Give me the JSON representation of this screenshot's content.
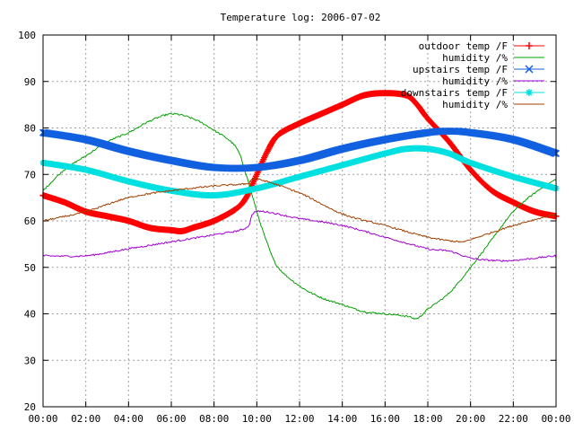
{
  "chart_data": {
    "type": "line",
    "title": "Temperature log: 2006-07-02",
    "xlabel": "",
    "ylabel": "",
    "xlim": [
      0,
      24
    ],
    "ylim": [
      20,
      100
    ],
    "grid": true,
    "legend_position": "top-right",
    "x_ticks": [
      "00:00",
      "02:00",
      "04:00",
      "06:00",
      "08:00",
      "10:00",
      "12:00",
      "14:00",
      "16:00",
      "18:00",
      "20:00",
      "22:00",
      "00:00"
    ],
    "y_ticks": [
      "20",
      "30",
      "40",
      "50",
      "60",
      "70",
      "80",
      "90",
      "100"
    ],
    "series": [
      {
        "name": "outdoor temp /F",
        "color": "#ff0000",
        "marker": "plus",
        "points": [
          [
            0,
            65.5
          ],
          [
            1,
            64
          ],
          [
            2,
            62
          ],
          [
            3,
            61
          ],
          [
            4,
            60
          ],
          [
            5,
            58.5
          ],
          [
            6,
            58
          ],
          [
            6.5,
            57.8
          ],
          [
            7,
            58.5
          ],
          [
            8,
            60
          ],
          [
            9,
            62.5
          ],
          [
            9.5,
            65
          ],
          [
            10,
            70
          ],
          [
            10.5,
            75
          ],
          [
            11,
            78.5
          ],
          [
            12,
            81
          ],
          [
            13,
            83
          ],
          [
            14,
            85
          ],
          [
            15,
            87
          ],
          [
            16,
            87.5
          ],
          [
            17,
            87
          ],
          [
            17.5,
            85
          ],
          [
            18,
            82
          ],
          [
            19,
            77
          ],
          [
            20,
            71
          ],
          [
            21,
            66.5
          ],
          [
            22,
            64
          ],
          [
            23,
            62
          ],
          [
            24,
            61
          ]
        ]
      },
      {
        "name": "humidity /%",
        "color": "#00a000",
        "marker": "none",
        "points": [
          [
            0,
            66.5
          ],
          [
            1,
            71
          ],
          [
            2,
            74
          ],
          [
            3,
            77
          ],
          [
            4,
            79
          ],
          [
            5,
            81.5
          ],
          [
            6,
            83
          ],
          [
            7,
            82
          ],
          [
            8,
            79.5
          ],
          [
            9,
            76
          ],
          [
            9.5,
            70
          ],
          [
            10,
            62
          ],
          [
            10.5,
            55
          ],
          [
            11,
            50
          ],
          [
            12,
            46
          ],
          [
            13,
            43.5
          ],
          [
            14,
            42
          ],
          [
            15,
            40.5
          ],
          [
            16,
            40
          ],
          [
            17,
            39.5
          ],
          [
            17.5,
            39
          ],
          [
            18,
            41
          ],
          [
            19,
            44.5
          ],
          [
            20,
            50
          ],
          [
            21,
            56
          ],
          [
            22,
            62
          ],
          [
            23,
            66
          ],
          [
            24,
            69
          ]
        ]
      },
      {
        "name": "upstairs temp /F",
        "color": "#1060e0",
        "marker": "x",
        "points": [
          [
            0,
            79
          ],
          [
            2,
            77.5
          ],
          [
            4,
            75
          ],
          [
            6,
            73
          ],
          [
            8,
            71.5
          ],
          [
            10,
            71.5
          ],
          [
            12,
            73
          ],
          [
            14,
            75.5
          ],
          [
            16,
            77.5
          ],
          [
            18,
            79
          ],
          [
            19,
            79.3
          ],
          [
            20,
            79
          ],
          [
            22,
            77.5
          ],
          [
            24,
            74.5
          ]
        ]
      },
      {
        "name": "humidity /%",
        "color": "#a000d0",
        "marker": "none",
        "points": [
          [
            0,
            52.5
          ],
          [
            2,
            52.5
          ],
          [
            4,
            54
          ],
          [
            6,
            55.5
          ],
          [
            8,
            57
          ],
          [
            9.5,
            58.5
          ],
          [
            10,
            62
          ],
          [
            12,
            60.5
          ],
          [
            14,
            59
          ],
          [
            16,
            56.5
          ],
          [
            18,
            54
          ],
          [
            19,
            53.5
          ],
          [
            20,
            52
          ],
          [
            21,
            51.5
          ],
          [
            22,
            51.5
          ],
          [
            24,
            52.5
          ]
        ]
      },
      {
        "name": "downstairs temp /F",
        "color": "#00e0e0",
        "marker": "star",
        "points": [
          [
            0,
            72.5
          ],
          [
            2,
            71
          ],
          [
            4,
            68.5
          ],
          [
            6,
            66.5
          ],
          [
            8,
            65.5
          ],
          [
            10,
            67
          ],
          [
            12,
            69.5
          ],
          [
            14,
            72
          ],
          [
            16,
            74.5
          ],
          [
            17,
            75.5
          ],
          [
            18,
            75.5
          ],
          [
            19,
            74.5
          ],
          [
            20,
            72.5
          ],
          [
            22,
            69.5
          ],
          [
            24,
            67
          ]
        ]
      },
      {
        "name": "humidity /%",
        "color": "#a04000",
        "marker": "none",
        "points": [
          [
            0,
            60
          ],
          [
            2,
            62
          ],
          [
            4,
            65
          ],
          [
            6,
            66.5
          ],
          [
            8,
            67.5
          ],
          [
            9.5,
            68
          ],
          [
            10,
            69
          ],
          [
            12,
            66
          ],
          [
            14,
            61.5
          ],
          [
            16,
            59
          ],
          [
            18,
            56.5
          ],
          [
            19.5,
            55.5
          ],
          [
            20,
            56
          ],
          [
            22,
            59
          ],
          [
            24,
            61.5
          ]
        ]
      }
    ]
  }
}
